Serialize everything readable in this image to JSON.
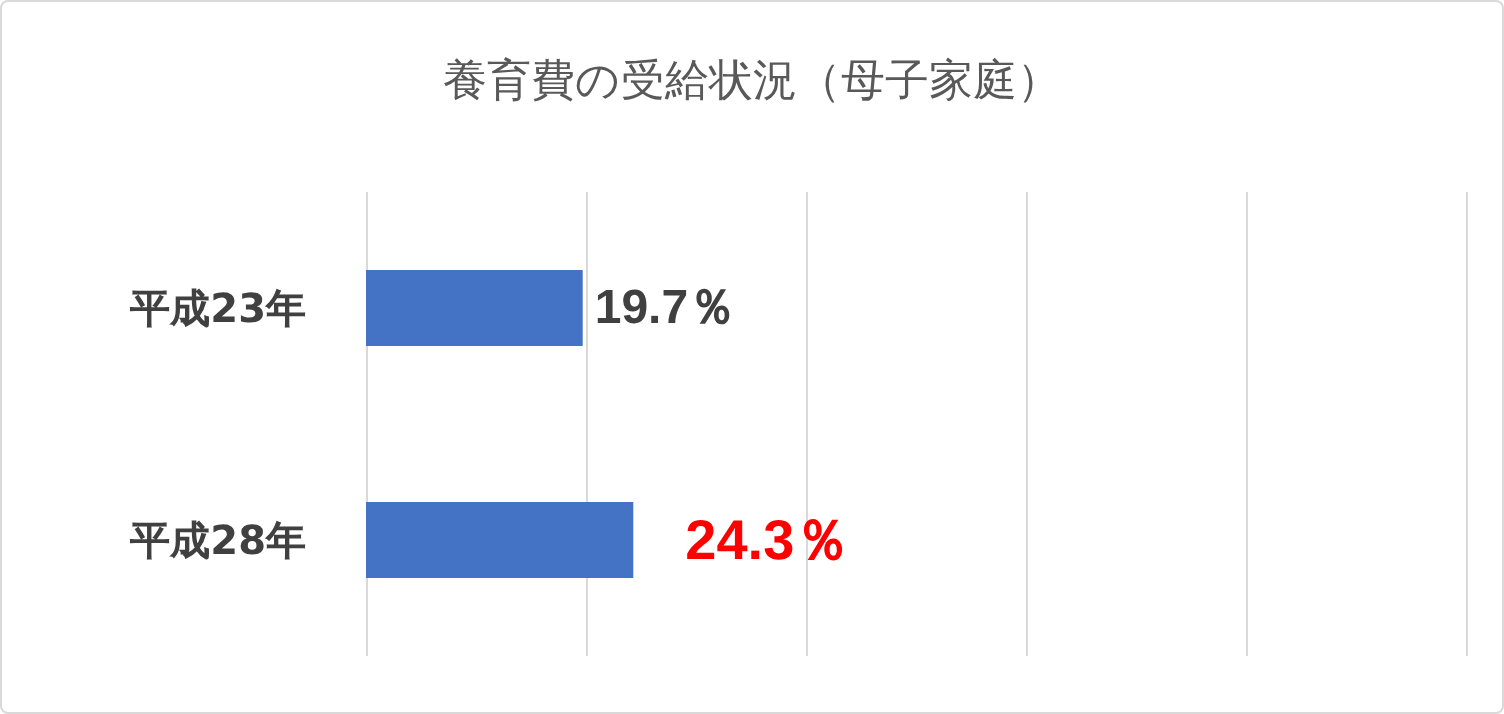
{
  "chart_data": {
    "type": "bar",
    "orientation": "horizontal",
    "title": "養育費の受給状況（母子家庭）",
    "categories": [
      "平成23年",
      "平成28年"
    ],
    "values": [
      19.7,
      24.3
    ],
    "color": "#4472c4",
    "value_labels": [
      "19.7％",
      "24.3％"
    ],
    "xlim": [
      0,
      100
    ],
    "xticks": [
      {
        "value": 0,
        "label": null
      },
      {
        "value": 20,
        "label": null
      },
      {
        "value": 40,
        "label": null
      },
      {
        "value": 60,
        "label": null
      },
      {
        "value": 80,
        "label": null
      },
      {
        "value": 100,
        "label": null
      }
    ],
    "grid": "x",
    "tick_labels": "y"
  }
}
